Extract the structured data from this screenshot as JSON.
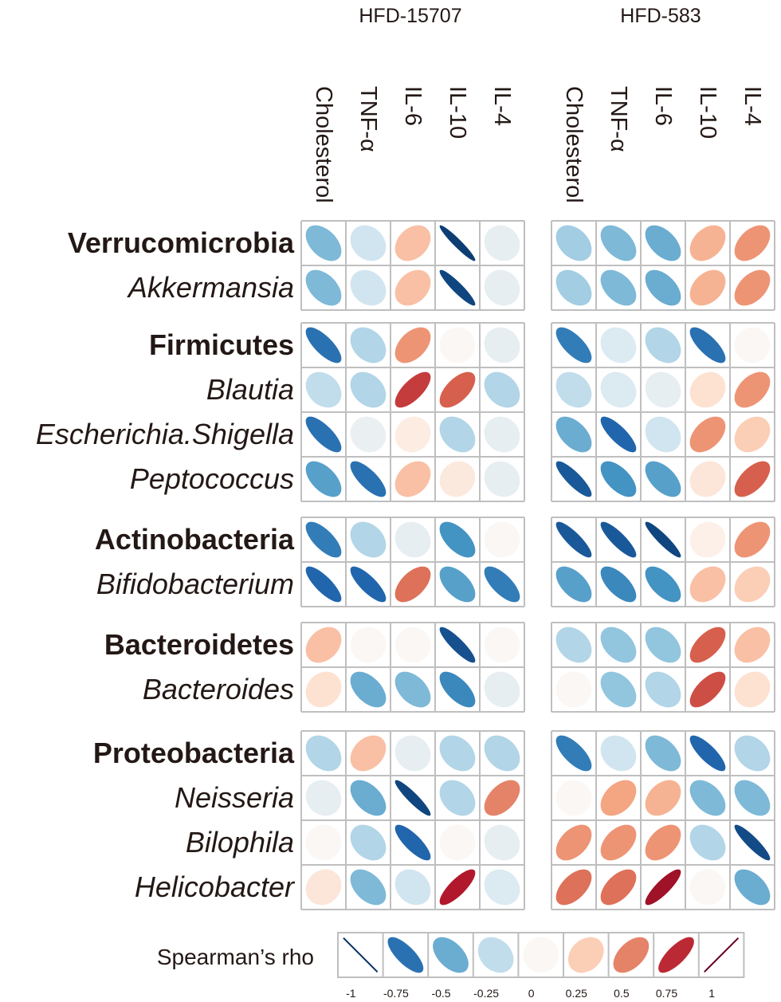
{
  "chart_data": {
    "type": "heatmap",
    "subtype": "ellipse-correlation-matrix",
    "panels": [
      {
        "title": "HFD-15707",
        "columns": [
          "Cholesterol",
          "TNF-α",
          "IL-6",
          "IL-10",
          "IL-4"
        ]
      },
      {
        "title": "HFD-583",
        "columns": [
          "Cholesterol",
          "TNF-α",
          "IL-6",
          "IL-10",
          "IL-4"
        ]
      }
    ],
    "groups": [
      {
        "rows": [
          {
            "name": "Verrucomicrobia",
            "style": "phylum",
            "values": [
              [
                -0.45,
                -0.2,
                0.3,
                -0.95,
                -0.1
              ],
              [
                -0.35,
                -0.45,
                -0.5,
                0.35,
                0.45
              ]
            ]
          },
          {
            "name": "Akkermansia",
            "style": "genus",
            "values": [
              [
                -0.45,
                -0.2,
                0.3,
                -0.92,
                -0.1
              ],
              [
                -0.35,
                -0.45,
                -0.5,
                0.35,
                0.45
              ]
            ]
          }
        ]
      },
      {
        "rows": [
          {
            "name": "Firmicutes",
            "style": "phylum",
            "values": [
              [
                -0.75,
                -0.3,
                0.45,
                0.0,
                -0.1
              ],
              [
                -0.7,
                -0.15,
                -0.3,
                -0.75,
                0.0
              ]
            ]
          },
          {
            "name": "Blautia",
            "style": "genus",
            "values": [
              [
                -0.25,
                -0.3,
                0.7,
                0.6,
                -0.3
              ],
              [
                -0.25,
                -0.15,
                -0.1,
                0.15,
                0.45
              ]
            ]
          },
          {
            "name": "Escherichia.Shigella",
            "style": "genus",
            "values": [
              [
                -0.75,
                -0.08,
                0.08,
                -0.3,
                -0.1
              ],
              [
                -0.5,
                -0.8,
                -0.2,
                0.45,
                0.25
              ]
            ]
          },
          {
            "name": "Peptococcus",
            "style": "genus",
            "values": [
              [
                -0.55,
                -0.75,
                0.3,
                0.1,
                -0.1
              ],
              [
                -0.85,
                -0.6,
                -0.55,
                0.12,
                0.6
              ]
            ]
          }
        ]
      },
      {
        "rows": [
          {
            "name": "Actinobacteria",
            "style": "phylum",
            "values": [
              [
                -0.7,
                -0.3,
                -0.1,
                -0.6,
                0.0
              ],
              [
                -0.85,
                -0.85,
                -0.92,
                0.05,
                0.45
              ]
            ]
          },
          {
            "name": "Bifidobacterium",
            "style": "genus",
            "values": [
              [
                -0.8,
                -0.8,
                0.55,
                -0.55,
                -0.7
              ],
              [
                -0.55,
                -0.65,
                -0.6,
                0.3,
                0.25
              ]
            ]
          }
        ]
      },
      {
        "rows": [
          {
            "name": "Bacteroidetes",
            "style": "phylum",
            "values": [
              [
                0.3,
                0.0,
                0.0,
                -0.88,
                0.0
              ],
              [
                -0.3,
                -0.4,
                -0.4,
                0.6,
                0.3
              ]
            ]
          },
          {
            "name": "Bacteroides",
            "style": "genus",
            "values": [
              [
                0.15,
                -0.5,
                -0.45,
                -0.65,
                -0.1
              ],
              [
                0.0,
                -0.4,
                -0.3,
                0.65,
                0.15
              ]
            ]
          }
        ]
      },
      {
        "rows": [
          {
            "name": "Proteobacteria",
            "style": "phylum",
            "values": [
              [
                -0.3,
                0.3,
                -0.1,
                -0.3,
                -0.3
              ],
              [
                -0.7,
                -0.2,
                -0.45,
                -0.8,
                -0.3
              ]
            ]
          },
          {
            "name": "Neisseria",
            "style": "genus",
            "values": [
              [
                -0.1,
                -0.5,
                -0.92,
                -0.3,
                0.5
              ],
              [
                0.0,
                0.4,
                0.35,
                -0.45,
                -0.45
              ]
            ]
          },
          {
            "name": "Bilophila",
            "style": "genus",
            "values": [
              [
                0.0,
                -0.3,
                -0.8,
                0.0,
                -0.1
              ],
              [
                0.45,
                0.45,
                0.45,
                -0.3,
                -0.9
              ]
            ]
          },
          {
            "name": "Helicobacter",
            "style": "genus",
            "values": [
              [
                0.12,
                -0.45,
                -0.2,
                0.8,
                -0.15
              ],
              [
                0.55,
                0.55,
                0.85,
                0.0,
                -0.5
              ]
            ]
          }
        ]
      }
    ],
    "legend": {
      "title": "Spearman’s rho",
      "values": [
        -1,
        -0.75,
        -0.5,
        -0.25,
        0,
        0.25,
        0.5,
        0.75,
        1
      ],
      "tick_labels": [
        "-1",
        "-0.75",
        "-0.5",
        "-0.25",
        "0",
        "0.25",
        "0.5",
        "0.75",
        "1"
      ]
    },
    "color_scale": {
      "negative": "#053061",
      "neutral": "#ffffff",
      "positive": "#67001f",
      "stops": [
        "#053061",
        "#2166ac",
        "#4393c3",
        "#92c5de",
        "#d1e5f0",
        "#fbf7f4",
        "#fddbc7",
        "#f4a582",
        "#d6604d",
        "#b2182b",
        "#67001f"
      ]
    },
    "grid_color": "#bfbfbf"
  }
}
